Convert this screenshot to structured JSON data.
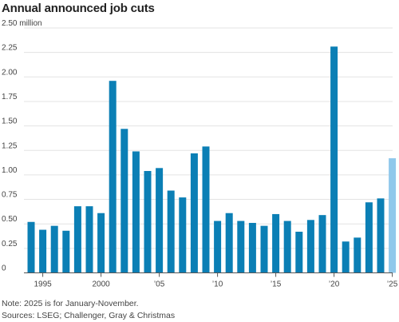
{
  "chart_data": {
    "type": "bar",
    "title": "Annual announced job cuts",
    "xlabel": "",
    "ylabel": "",
    "unit": "million",
    "ylim": [
      0,
      2.5
    ],
    "yticks": [
      {
        "value": 0,
        "label": "0"
      },
      {
        "value": 0.25,
        "label": "0.25"
      },
      {
        "value": 0.5,
        "label": "0.50"
      },
      {
        "value": 0.75,
        "label": "0.75"
      },
      {
        "value": 1.0,
        "label": "1.00"
      },
      {
        "value": 1.25,
        "label": "1.25"
      },
      {
        "value": 1.5,
        "label": "1.50"
      },
      {
        "value": 1.75,
        "label": "1.75"
      },
      {
        "value": 2.0,
        "label": "2.00"
      },
      {
        "value": 2.25,
        "label": "2.25"
      },
      {
        "value": 2.5,
        "label": "2.50 million"
      }
    ],
    "xticks": [
      {
        "value": 1995,
        "label": "1995"
      },
      {
        "value": 2000,
        "label": "2000"
      },
      {
        "value": 2005,
        "label": "’05"
      },
      {
        "value": 2010,
        "label": "’10"
      },
      {
        "value": 2015,
        "label": "’15"
      },
      {
        "value": 2020,
        "label": "’20"
      },
      {
        "value": 2025,
        "label": "’25"
      }
    ],
    "grid": true,
    "colors": {
      "bar": "#0b7fb5",
      "highlight": "#90c8eb",
      "grid": "#e3e3e3",
      "axis": "#555555"
    },
    "highlight_category": 2025,
    "categories": [
      1994,
      1995,
      1996,
      1997,
      1998,
      1999,
      2000,
      2001,
      2002,
      2003,
      2004,
      2005,
      2006,
      2007,
      2008,
      2009,
      2010,
      2011,
      2012,
      2013,
      2014,
      2015,
      2016,
      2017,
      2018,
      2019,
      2020,
      2021,
      2022,
      2023,
      2024,
      2025
    ],
    "values": [
      0.52,
      0.44,
      0.48,
      0.43,
      0.68,
      0.68,
      0.61,
      1.96,
      1.47,
      1.24,
      1.04,
      1.07,
      0.84,
      0.77,
      1.22,
      1.29,
      0.53,
      0.61,
      0.53,
      0.51,
      0.48,
      0.6,
      0.53,
      0.42,
      0.54,
      0.59,
      2.31,
      0.32,
      0.36,
      0.72,
      0.76,
      1.17
    ]
  },
  "notes": {
    "note": "Note: 2025 is for January-November.",
    "sources": "Sources: LSEG; Challenger, Gray & Christmas"
  }
}
